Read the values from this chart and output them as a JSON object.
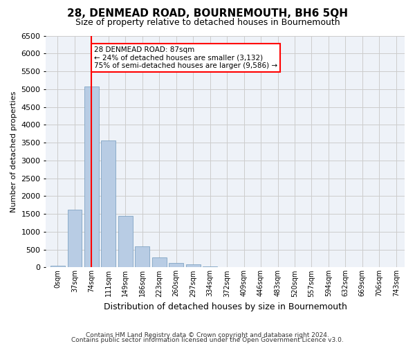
{
  "title": "28, DENMEAD ROAD, BOURNEMOUTH, BH6 5QH",
  "subtitle": "Size of property relative to detached houses in Bournemouth",
  "xlabel": "Distribution of detached houses by size in Bournemouth",
  "ylabel": "Number of detached properties",
  "footnote1": "Contains HM Land Registry data © Crown copyright and database right 2024.",
  "footnote2": "Contains public sector information licensed under the Open Government Licence v3.0.",
  "bin_labels": [
    "0sqm",
    "37sqm",
    "74sqm",
    "111sqm",
    "149sqm",
    "186sqm",
    "223sqm",
    "260sqm",
    "297sqm",
    "334sqm",
    "372sqm",
    "409sqm",
    "446sqm",
    "483sqm",
    "520sqm",
    "557sqm",
    "594sqm",
    "632sqm",
    "669sqm",
    "706sqm",
    "743sqm"
  ],
  "bar_values": [
    50,
    1620,
    5080,
    3560,
    1440,
    590,
    280,
    130,
    80,
    30,
    10,
    5,
    2,
    1,
    1,
    1,
    0,
    0,
    0,
    0,
    0
  ],
  "bar_color": "#b8cce4",
  "bar_edge_color": "#7099bb",
  "grid_color": "#cccccc",
  "annotation_text": "28 DENMEAD ROAD: 87sqm\n← 24% of detached houses are smaller (3,132)\n75% of semi-detached houses are larger (9,586) →",
  "annotation_box_color": "white",
  "annotation_box_edge": "red",
  "property_line_x": 2,
  "property_line_color": "red",
  "ylim": [
    0,
    6500
  ],
  "yticks": [
    0,
    500,
    1000,
    1500,
    2000,
    2500,
    3000,
    3500,
    4000,
    4500,
    5000,
    5500,
    6000,
    6500
  ],
  "bg_color": "#eef2f8",
  "plot_bg_color": "white"
}
